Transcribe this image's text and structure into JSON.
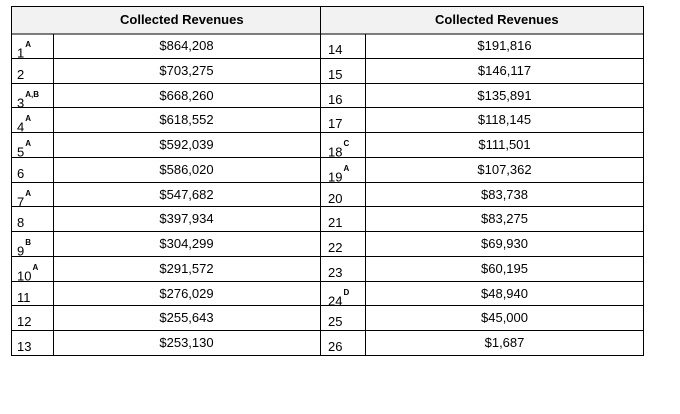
{
  "table": {
    "header": {
      "left": "Collected Revenues",
      "right": "Collected Revenues"
    },
    "left_rows": [
      {
        "rank": "1",
        "sup": "A",
        "value": "$864,208"
      },
      {
        "rank": "2",
        "sup": "",
        "value": "$703,275"
      },
      {
        "rank": "3",
        "sup": "A,B",
        "value": "$668,260"
      },
      {
        "rank": "4",
        "sup": "A",
        "value": "$618,552"
      },
      {
        "rank": "5",
        "sup": "A",
        "value": "$592,039"
      },
      {
        "rank": "6",
        "sup": "",
        "value": "$586,020"
      },
      {
        "rank": "7",
        "sup": "A",
        "value": "$547,682"
      },
      {
        "rank": "8",
        "sup": "",
        "value": "$397,934"
      },
      {
        "rank": "9",
        "sup": "B",
        "value": "$304,299"
      },
      {
        "rank": "10",
        "sup": "A",
        "value": "$291,572"
      },
      {
        "rank": "11",
        "sup": "",
        "value": "$276,029"
      },
      {
        "rank": "12",
        "sup": "",
        "value": "$255,643"
      },
      {
        "rank": "13",
        "sup": "",
        "value": "$253,130"
      }
    ],
    "right_rows": [
      {
        "rank": "14",
        "sup": "",
        "value": "$191,816"
      },
      {
        "rank": "15",
        "sup": "",
        "value": "$146,117"
      },
      {
        "rank": "16",
        "sup": "",
        "value": "$135,891"
      },
      {
        "rank": "17",
        "sup": "",
        "value": "$118,145"
      },
      {
        "rank": "18",
        "sup": "C",
        "value": "$111,501"
      },
      {
        "rank": "19",
        "sup": "A",
        "value": "$107,362"
      },
      {
        "rank": "20",
        "sup": "",
        "value": "$83,738"
      },
      {
        "rank": "21",
        "sup": "",
        "value": "$83,275"
      },
      {
        "rank": "22",
        "sup": "",
        "value": "$69,930"
      },
      {
        "rank": "23",
        "sup": "",
        "value": "$60,195"
      },
      {
        "rank": "24",
        "sup": "D",
        "value": "$48,940"
      },
      {
        "rank": "25",
        "sup": "",
        "value": "$45,000"
      },
      {
        "rank": "26",
        "sup": "",
        "value": "$1,687"
      }
    ]
  }
}
